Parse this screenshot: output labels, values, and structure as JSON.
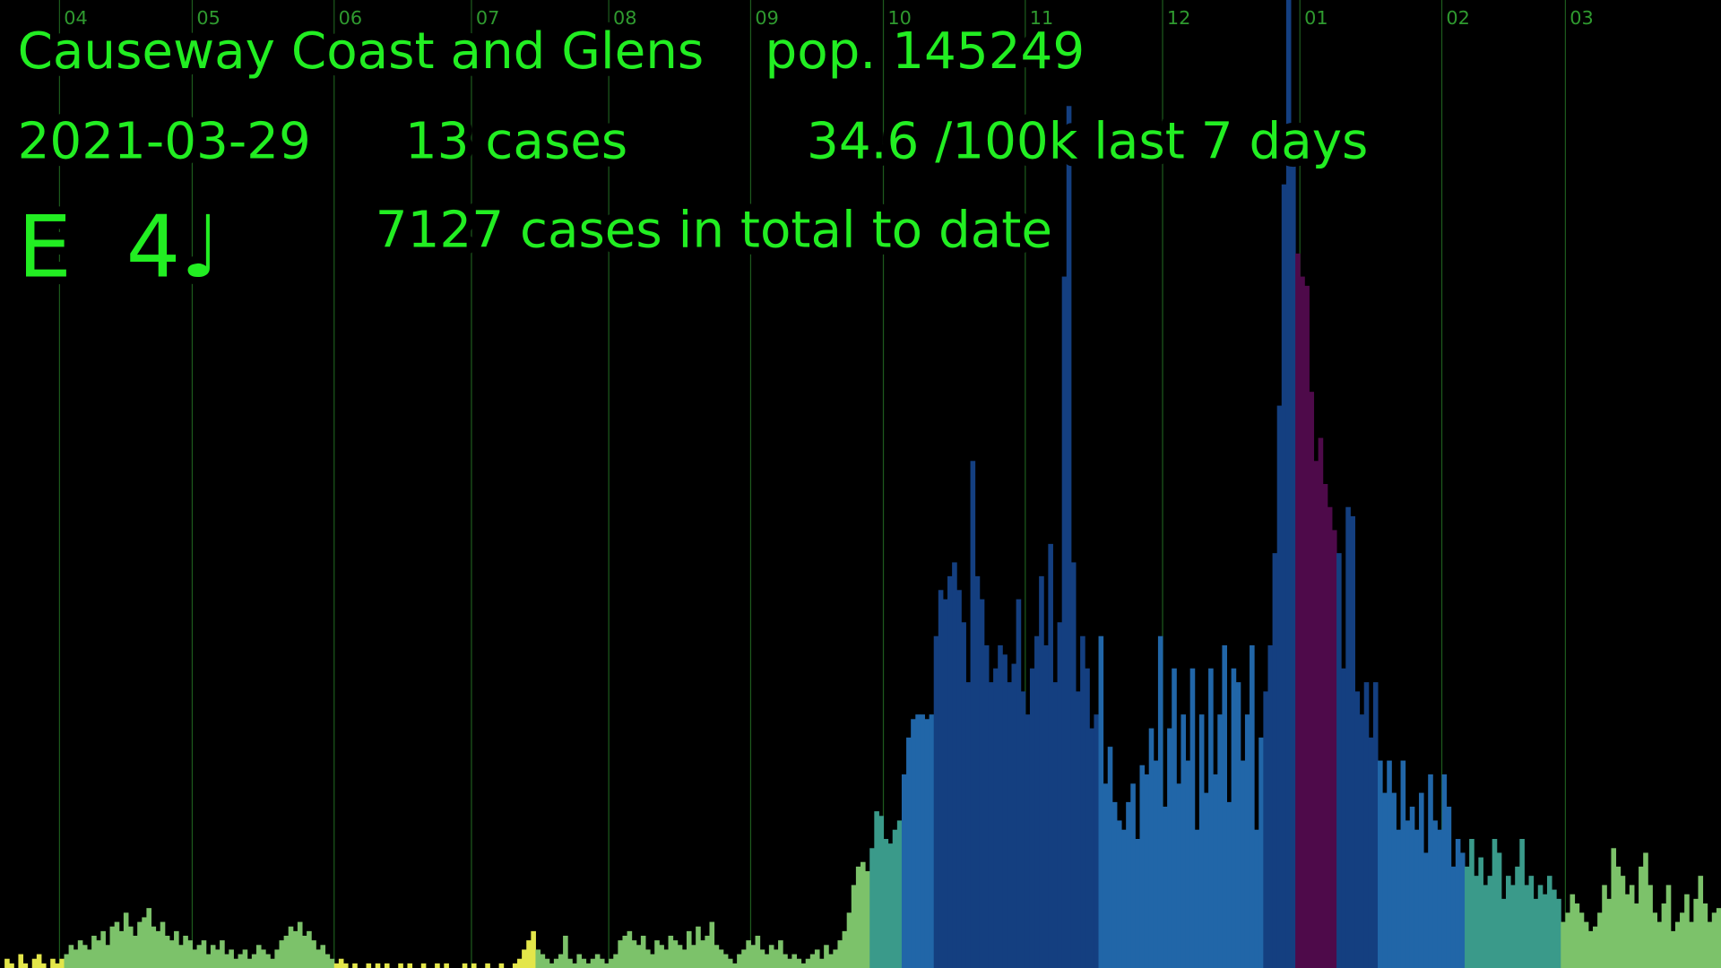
{
  "chart_data": {
    "type": "bar",
    "title": "Causeway Coast and Glens",
    "population": "pop. 145249",
    "date": "2021-03-29",
    "cases_today": "13 cases",
    "rate": "34.6 /100k last 7 days",
    "note": "E  4♩",
    "total": "7127 cases in total to date",
    "xlim": [
      0,
      376
    ],
    "xticks": [
      {
        "value": 13,
        "label": "04"
      },
      {
        "value": 42,
        "label": "05"
      },
      {
        "value": 73,
        "label": "06"
      },
      {
        "value": 103,
        "label": "07"
      },
      {
        "value": 133,
        "label": "08"
      },
      {
        "value": 164,
        "label": "09"
      },
      {
        "value": 193,
        "label": "10"
      },
      {
        "value": 224,
        "label": "11"
      },
      {
        "value": 254,
        "label": "12"
      },
      {
        "value": 284,
        "label": "01"
      },
      {
        "value": 315,
        "label": "02"
      },
      {
        "value": 342,
        "label": "03"
      }
    ],
    "ylim": [
      0,
      210
    ],
    "grid": true,
    "series": [
      {
        "color": "#e3e64a",
        "values": [
          0,
          2,
          1,
          0,
          3,
          1,
          0,
          2,
          3,
          1,
          0,
          2,
          1,
          2
        ]
      },
      {
        "color": "#7cc26a",
        "values": [
          3,
          5,
          4,
          6,
          5,
          4,
          7,
          6,
          8,
          5,
          9,
          10,
          8,
          12,
          9,
          7,
          10,
          11,
          13,
          9,
          8,
          10,
          7,
          6,
          8,
          5,
          7,
          6,
          4,
          5,
          6,
          3,
          5,
          4,
          6,
          3,
          4,
          2,
          3,
          4,
          2,
          3,
          5,
          4,
          3,
          2,
          4,
          6,
          7,
          9,
          8,
          10,
          7,
          8,
          6,
          4,
          5,
          3,
          2
        ]
      },
      {
        "color": "#e3e64a",
        "values": [
          1,
          2,
          1,
          0,
          1,
          0,
          0,
          1,
          0,
          1,
          0,
          1,
          0,
          0,
          1,
          0,
          1,
          0,
          0,
          1,
          0,
          0,
          1,
          0,
          1,
          0,
          0,
          0,
          1,
          0,
          1,
          0,
          0,
          1,
          0,
          0,
          1,
          0,
          0,
          1,
          2,
          4,
          6,
          8
        ]
      },
      {
        "color": "#7cc26a",
        "values": [
          4,
          3,
          2,
          1,
          2,
          3,
          7,
          2,
          1,
          3,
          2,
          1,
          2,
          3,
          2,
          1,
          2,
          3,
          6,
          7,
          8,
          6,
          5,
          7,
          4,
          3,
          6,
          5,
          4,
          7,
          6,
          5,
          4,
          8,
          5,
          9,
          6,
          7,
          10,
          5,
          4,
          3,
          2,
          1,
          3,
          4,
          6,
          5,
          7,
          4,
          3,
          5,
          4,
          6,
          3,
          2,
          3,
          2,
          1,
          2,
          3,
          4,
          2,
          5,
          3,
          4,
          6,
          8
        ]
      },
      {
        "color": "#7cc26a",
        "values": [
          12,
          18,
          22,
          23,
          21
        ]
      },
      {
        "color": "#3a9a8a",
        "values": [
          26,
          34,
          33,
          28,
          27,
          30,
          32
        ]
      },
      {
        "color": "#2166a8",
        "values": [
          42,
          50,
          54,
          55,
          55,
          54,
          55
        ]
      },
      {
        "color": "#143f80",
        "values": [
          72,
          82,
          80,
          85,
          88,
          82,
          75,
          62,
          110,
          85,
          80,
          70,
          62,
          65,
          70,
          68,
          62,
          66,
          80,
          60,
          55,
          65,
          72,
          85,
          70,
          92,
          62,
          75,
          150,
          187,
          88,
          60,
          72,
          65,
          52,
          55
        ]
      },
      {
        "color": "#2166a8",
        "values": [
          72,
          40,
          48,
          36,
          32,
          30,
          36,
          40,
          28,
          44,
          42,
          52,
          45,
          72,
          35,
          52,
          65,
          40,
          55,
          45,
          65,
          30,
          55,
          38,
          65,
          42,
          55,
          70,
          36,
          65,
          62,
          45,
          55,
          70,
          30,
          50
        ]
      },
      {
        "color": "#143f80",
        "values": [
          60,
          70,
          90,
          122,
          170,
          210,
          180
        ]
      },
      {
        "color": "#4e0a4a",
        "values": [
          155,
          150,
          148,
          125,
          110,
          115,
          105,
          100,
          95
        ]
      },
      {
        "color": "#143f80",
        "values": [
          90,
          65,
          100,
          98,
          60,
          55,
          62,
          50,
          62
        ]
      },
      {
        "color": "#2166a8",
        "values": [
          45,
          38,
          45,
          38,
          30,
          45,
          32,
          35,
          30,
          38,
          25,
          42,
          32,
          30,
          42,
          35,
          22,
          28,
          25
        ]
      },
      {
        "color": "#3a9a8a",
        "values": [
          22,
          28,
          20,
          24,
          18,
          20,
          28,
          25,
          15,
          20,
          18,
          22,
          28,
          18,
          20,
          15,
          18,
          16,
          20,
          17,
          15
        ]
      },
      {
        "color": "#7cc26a",
        "values": [
          10,
          12,
          16,
          14,
          12,
          10,
          8,
          9,
          12,
          18,
          15,
          26,
          22,
          20,
          16,
          18,
          14,
          22,
          25,
          18,
          12,
          10,
          14,
          18,
          8,
          10,
          12,
          16,
          10,
          15,
          20,
          14,
          10,
          12,
          13
        ]
      }
    ]
  }
}
